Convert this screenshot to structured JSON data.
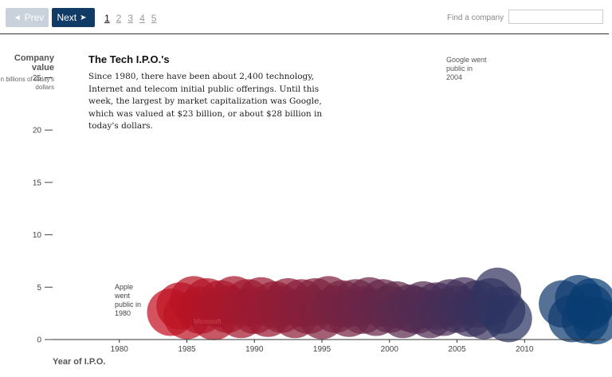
{
  "nav": {
    "prev_label": "Prev",
    "next_label": "Next",
    "pages": [
      "1",
      "2",
      "3",
      "4",
      "5"
    ],
    "active_page": "1"
  },
  "search": {
    "label": "Find a company",
    "value": ""
  },
  "header": {
    "title": "The Tech I.P.O.'s",
    "description": "Since 1980, there have been about 2,400 technology, Internet and telecom initial public offerings. Until this week, the largest by market capitalization was Google, which was valued at $23 billion, or about $28 billion in today's dollars."
  },
  "chart_data": {
    "type": "scatter",
    "ylabel": "Company value",
    "ylabel_sub": "In billions of today's dollars",
    "xlabel": "Year of I.P.O.",
    "xlim": [
      1975,
      2016
    ],
    "ylim": [
      0,
      28
    ],
    "xticks": [
      1980,
      1985,
      1990,
      1995,
      2000,
      2005,
      2010
    ],
    "yticks": [
      0,
      5,
      10,
      15,
      20,
      25
    ],
    "grid": false,
    "color_start": "#c8101e",
    "color_end": "#083d73",
    "annotations": [
      {
        "text": "Google went public in 2004",
        "x": 2004,
        "y": 28
      },
      {
        "text": "Apple went public in 1980",
        "x": 1980,
        "y": 5
      },
      {
        "text": "Microsoft",
        "x": 1986,
        "y": 2
      }
    ],
    "points": [
      {
        "x": 1983.8,
        "y": 2.6
      },
      {
        "x": 1984.5,
        "y": 3.2
      },
      {
        "x": 1985.0,
        "y": 2.3
      },
      {
        "x": 1985.5,
        "y": 3.8
      },
      {
        "x": 1986.0,
        "y": 2.8
      },
      {
        "x": 1986.5,
        "y": 3.6
      },
      {
        "x": 1987.0,
        "y": 2.2
      },
      {
        "x": 1987.5,
        "y": 3.4
      },
      {
        "x": 1988.0,
        "y": 2.9
      },
      {
        "x": 1988.5,
        "y": 3.8
      },
      {
        "x": 1989.0,
        "y": 2.4
      },
      {
        "x": 1989.5,
        "y": 3.5
      },
      {
        "x": 1990.0,
        "y": 2.8
      },
      {
        "x": 1990.5,
        "y": 3.7
      },
      {
        "x": 1991.0,
        "y": 2.5
      },
      {
        "x": 1991.5,
        "y": 3.3
      },
      {
        "x": 1992.0,
        "y": 2.9
      },
      {
        "x": 1992.5,
        "y": 3.6
      },
      {
        "x": 1993.0,
        "y": 2.4
      },
      {
        "x": 1993.5,
        "y": 3.5
      },
      {
        "x": 1994.0,
        "y": 2.8
      },
      {
        "x": 1994.5,
        "y": 3.6
      },
      {
        "x": 1995.0,
        "y": 2.3
      },
      {
        "x": 1995.5,
        "y": 3.8
      },
      {
        "x": 1996.0,
        "y": 2.9
      },
      {
        "x": 1996.5,
        "y": 3.4
      },
      {
        "x": 1997.0,
        "y": 2.5
      },
      {
        "x": 1997.5,
        "y": 3.5
      },
      {
        "x": 1998.0,
        "y": 2.8
      },
      {
        "x": 1998.5,
        "y": 3.7
      },
      {
        "x": 1999.0,
        "y": 2.6
      },
      {
        "x": 1999.5,
        "y": 3.5
      },
      {
        "x": 2000.0,
        "y": 2.9
      },
      {
        "x": 2000.5,
        "y": 3.3
      },
      {
        "x": 2001.0,
        "y": 2.4
      },
      {
        "x": 2001.5,
        "y": 3.0
      },
      {
        "x": 2002.0,
        "y": 2.8
      },
      {
        "x": 2002.5,
        "y": 3.3
      },
      {
        "x": 2003.0,
        "y": 2.4
      },
      {
        "x": 2003.5,
        "y": 3.2
      },
      {
        "x": 2004.0,
        "y": 2.6
      },
      {
        "x": 2004.5,
        "y": 3.5
      },
      {
        "x": 2005.0,
        "y": 2.9
      },
      {
        "x": 2005.5,
        "y": 3.7
      },
      {
        "x": 2006.0,
        "y": 2.5
      },
      {
        "x": 2006.5,
        "y": 3.4
      },
      {
        "x": 2007.0,
        "y": 2.3
      },
      {
        "x": 2007.5,
        "y": 3.6
      },
      {
        "x": 2008.0,
        "y": 4.6
      },
      {
        "x": 2008.3,
        "y": 2.8
      },
      {
        "x": 2008.8,
        "y": 2.0
      },
      {
        "x": 2012.8,
        "y": 3.4
      },
      {
        "x": 2013.5,
        "y": 2.0
      },
      {
        "x": 2014.0,
        "y": 3.9
      },
      {
        "x": 2014.5,
        "y": 1.9
      },
      {
        "x": 2015.0,
        "y": 3.6
      },
      {
        "x": 2015.3,
        "y": 1.8
      },
      {
        "x": 2014.8,
        "y": 3.1
      }
    ]
  }
}
